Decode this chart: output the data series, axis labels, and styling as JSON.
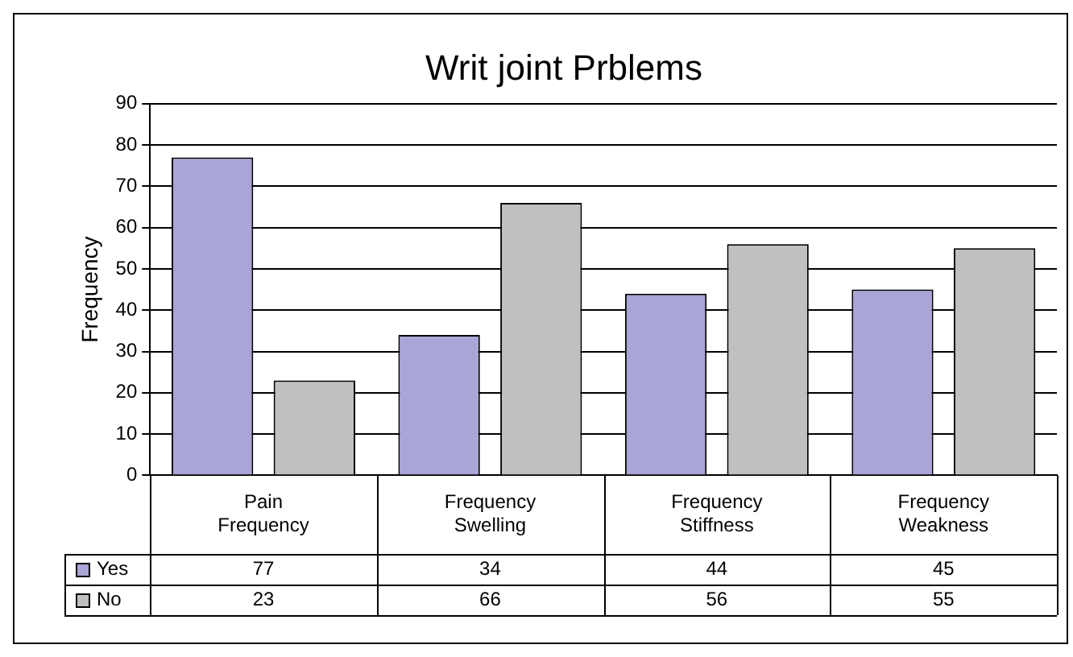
{
  "chart_data": {
    "type": "bar",
    "title": "Writ joint Prblems",
    "ylabel": "Frequency",
    "categories": [
      "Pain Frequency",
      "Frequency Swelling",
      "Frequency Stiffness",
      "Frequency Weakness"
    ],
    "series": [
      {
        "name": "Yes",
        "color": "#a9a5d6",
        "values": [
          77,
          34,
          44,
          45
        ]
      },
      {
        "name": "No",
        "color": "#c0c0c0",
        "values": [
          23,
          66,
          56,
          55
        ]
      }
    ],
    "ylim": [
      0,
      90
    ],
    "yticks": [
      0,
      10,
      20,
      30,
      40,
      50,
      60,
      70,
      80,
      90
    ],
    "grid": "y",
    "legend": "bottom",
    "data_labels": true
  }
}
